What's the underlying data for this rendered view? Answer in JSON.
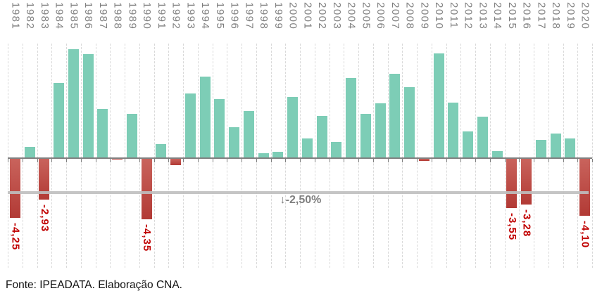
{
  "chart_data": {
    "type": "bar",
    "title": "",
    "unit": "%",
    "categories": [
      "1981",
      "1982",
      "1983",
      "1984",
      "1985",
      "1986",
      "1987",
      "1988",
      "1989",
      "1990",
      "1991",
      "1992",
      "1993",
      "1994",
      "1995",
      "1996",
      "1997",
      "1998",
      "1999",
      "2000",
      "2001",
      "2002",
      "2003",
      "2004",
      "2005",
      "2006",
      "2007",
      "2008",
      "2009",
      "2010",
      "2011",
      "2012",
      "2013",
      "2014",
      "2015",
      "2016",
      "2017",
      "2018",
      "2019",
      "2020"
    ],
    "values": [
      -4.25,
      0.83,
      -2.93,
      5.4,
      7.85,
      7.49,
      3.53,
      -0.06,
      3.16,
      -4.35,
      1.03,
      -0.47,
      4.67,
      5.85,
      4.22,
      2.21,
      3.39,
      0.34,
      0.47,
      4.39,
      1.39,
      3.05,
      1.14,
      5.76,
      3.2,
      3.96,
      6.07,
      5.09,
      -0.13,
      7.53,
      3.97,
      1.92,
      3.0,
      0.5,
      -3.55,
      -3.28,
      1.32,
      1.78,
      1.41,
      -4.1
    ],
    "bar_labels": {
      "1981": "-4,25",
      "1983": "-2,93",
      "1990": "-4,35",
      "2015": "-3,55",
      "2016": "-3,28",
      "2020": "-4,10"
    },
    "reference_line": {
      "value": -2.5,
      "label": "↓-2,50%"
    },
    "ylim": [
      -8,
      8.3
    ],
    "xlabel": "",
    "ylabel": "",
    "grid": "vertical-dashed",
    "legend": "none"
  },
  "colors": {
    "positive_bar": "#7DCDB6",
    "negative_bar_top": "#C9635C",
    "negative_bar_bottom": "#B23A35",
    "negative_label": "#C00000",
    "axis_label": "#7F7F7F",
    "annotation": "#7F7F7F",
    "axis_line": "#808080",
    "gridline": "#D9D9D9",
    "reference_line": "#BFBFBF"
  },
  "footer": {
    "source": "Fonte: IPEADATA. Elaboração CNA."
  }
}
